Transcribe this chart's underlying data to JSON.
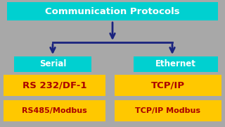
{
  "bg_color": "#a8a8a8",
  "title_box_color": "#00d0d0",
  "title_text": "Communication Protocols",
  "title_text_color": "#ffffff",
  "serial_box_color": "#00d0d0",
  "serial_text": "Serial",
  "serial_text_color": "#ffffff",
  "ethernet_box_color": "#00d0d0",
  "ethernet_text": "Ethernet",
  "ethernet_text_color": "#ffffff",
  "yellow_color": "#ffc800",
  "red_text_color": "#aa0000",
  "arrow_color": "#1a237e",
  "items_left": [
    "RS 232/DF-1",
    "RS485/Modbus"
  ],
  "items_right": [
    "TCP/IP",
    "TCP/IP Modbus"
  ],
  "title_fontsize": 9.5,
  "serial_fontsize": 8.5,
  "yellow_fontsize_1": 9.5,
  "yellow_fontsize_2": 8.0
}
